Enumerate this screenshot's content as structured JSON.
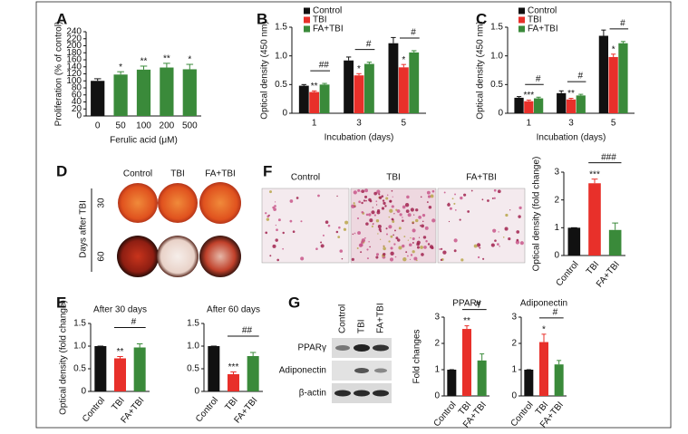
{
  "panel_letters": [
    "A",
    "B",
    "C",
    "D",
    "E",
    "F",
    "G"
  ],
  "panel_d": {
    "columns": [
      "Control",
      "TBI",
      "FA+TBI"
    ],
    "rows": [
      "30",
      "60"
    ],
    "row_title": "Days after TBI"
  },
  "panel_f": {
    "columns": [
      "Control",
      "TBI",
      "FA+TBI"
    ]
  },
  "panel_g_blot": {
    "lanes": [
      "Control",
      "TBI",
      "FA+TBI"
    ],
    "bands": [
      "PPARγ",
      "Adiponectin",
      "β-actin"
    ]
  },
  "chart_data": [
    {
      "type": "bar",
      "ylabel": "Proliferation (% of control)",
      "xlabel": "Ferulic acid (μM)",
      "categories": [
        "0",
        "50",
        "100",
        "200",
        "500"
      ],
      "values": [
        100,
        118,
        132,
        138,
        133
      ],
      "errors": [
        6,
        8,
        10,
        12,
        14
      ],
      "stars": [
        null,
        "*",
        "**",
        "**",
        "*"
      ],
      "colors": [
        "#111111",
        "#3a8a3a",
        "#3a8a3a",
        "#3a8a3a",
        "#3a8a3a"
      ],
      "ylim": [
        0,
        240
      ],
      "yticks": [
        0,
        20,
        40,
        60,
        80,
        100,
        120,
        140,
        160,
        180,
        200,
        220,
        240
      ]
    },
    {
      "type": "bar",
      "ylabel": "Optical density (450 nm)",
      "xlabel": "Incubation (days)",
      "categories": [
        "1",
        "3",
        "5"
      ],
      "series": [
        {
          "name": "Control",
          "color": "#111111",
          "values": [
            0.48,
            0.92,
            1.22
          ],
          "errors": [
            0.02,
            0.06,
            0.1
          ]
        },
        {
          "name": "TBI",
          "color": "#e8302a",
          "values": [
            0.37,
            0.66,
            0.8
          ],
          "errors": [
            0.02,
            0.03,
            0.05
          ],
          "stars": [
            "**",
            "*",
            "*"
          ]
        },
        {
          "name": "FA+TBI",
          "color": "#3a8a3a",
          "values": [
            0.5,
            0.86,
            1.06
          ],
          "errors": [
            0.02,
            0.03,
            0.03
          ]
        }
      ],
      "bracket_labels": [
        "##",
        "#",
        "#"
      ],
      "ylim": [
        0,
        1.5
      ],
      "yticks": [
        0,
        0.5,
        {
          "value": 1,
          "label": "1.0"
        },
        1.5
      ]
    },
    {
      "type": "bar",
      "ylabel": "Optical density (450 nm)",
      "xlabel": "Incubation (days)",
      "categories": [
        "1",
        "3",
        "5"
      ],
      "series": [
        {
          "name": "Control",
          "color": "#111111",
          "values": [
            0.27,
            0.35,
            1.35
          ],
          "errors": [
            0.02,
            0.04,
            0.1
          ]
        },
        {
          "name": "TBI",
          "color": "#e8302a",
          "values": [
            0.21,
            0.24,
            0.98
          ],
          "errors": [
            0.02,
            0.02,
            0.05
          ],
          "stars": [
            "***",
            "**",
            "*"
          ]
        },
        {
          "name": "FA+TBI",
          "color": "#3a8a3a",
          "values": [
            0.26,
            0.31,
            1.22
          ],
          "errors": [
            0.02,
            0.02,
            0.03
          ]
        }
      ],
      "bracket_labels": [
        "#",
        "#",
        "#"
      ],
      "ylim": [
        0,
        1.5
      ],
      "yticks": [
        0,
        0.5,
        {
          "value": 1,
          "label": "1.0"
        },
        1.5
      ]
    },
    {
      "type": "bar",
      "title": "After 30 days",
      "ylabel": "Optical density (fold change)",
      "categories": [
        "Control",
        "TBI",
        "FA+TBI"
      ],
      "values": [
        1,
        0.73,
        0.97
      ],
      "errors": [
        0,
        0.04,
        0.08
      ],
      "stars": [
        null,
        "**",
        null
      ],
      "bracket_label": "#",
      "colors": [
        "#111111",
        "#e8302a",
        "#3a8a3a"
      ],
      "ylim": [
        0,
        1.5
      ],
      "yticks": [
        0,
        0.5,
        {
          "value": 1,
          "label": "1.0"
        },
        1.5
      ]
    },
    {
      "type": "bar",
      "title": "After 60 days",
      "categories": [
        "Control",
        "TBI",
        "FA+TBI"
      ],
      "values": [
        1,
        0.38,
        0.78
      ],
      "errors": [
        0,
        0.05,
        0.08
      ],
      "stars": [
        null,
        "***",
        null
      ],
      "bracket_label": "##",
      "colors": [
        "#111111",
        "#e8302a",
        "#3a8a3a"
      ],
      "ylim": [
        0,
        1.5
      ],
      "yticks": [
        0,
        0.5,
        {
          "value": 1,
          "label": "1.0"
        },
        1.5
      ]
    },
    {
      "type": "bar",
      "ylabel": "Optical density (fold change)",
      "categories": [
        "Control",
        "TBI",
        "FA+TBI"
      ],
      "values": [
        1,
        2.6,
        0.92
      ],
      "errors": [
        0,
        0.15,
        0.25
      ],
      "stars": [
        null,
        "***",
        null
      ],
      "bracket_label": "###",
      "colors": [
        "#111111",
        "#e8302a",
        "#3a8a3a"
      ],
      "ylim": [
        0,
        3
      ],
      "yticks": [
        0,
        1,
        2,
        3
      ]
    },
    {
      "type": "bar",
      "title": "PPARγ",
      "ylabel": "Fold changes",
      "categories": [
        "Control",
        "TBI",
        "FA+TBI"
      ],
      "values": [
        1,
        2.55,
        1.35
      ],
      "errors": [
        0,
        0.12,
        0.25
      ],
      "stars": [
        null,
        "**",
        null
      ],
      "bracket_label": "#",
      "colors": [
        "#111111",
        "#e8302a",
        "#3a8a3a"
      ],
      "ylim": [
        0,
        3
      ],
      "yticks": [
        0,
        1,
        2,
        3
      ]
    },
    {
      "type": "bar",
      "title": "Adiponectin",
      "categories": [
        "Control",
        "TBI",
        "FA+TBI"
      ],
      "values": [
        1,
        2.05,
        1.2
      ],
      "errors": [
        0,
        0.3,
        0.15
      ],
      "stars": [
        null,
        "*",
        null
      ],
      "bracket_label": "#",
      "colors": [
        "#111111",
        "#e8302a",
        "#3a8a3a"
      ],
      "ylim": [
        0,
        3
      ],
      "yticks": [
        0,
        1,
        2,
        3
      ]
    }
  ]
}
